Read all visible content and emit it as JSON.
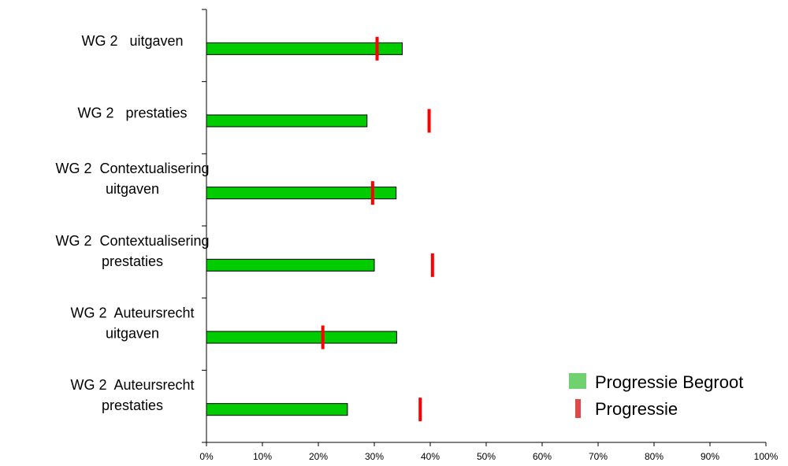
{
  "chart_data": {
    "type": "bar",
    "orientation": "horizontal",
    "categories": [
      [
        "WG 2   uitgaven"
      ],
      [
        "WG 2   prestaties"
      ],
      [
        "WG 2  Contextualisering",
        "uitgaven"
      ],
      [
        "WG 2  Contextualisering",
        "prestaties"
      ],
      [
        "WG 2  Auteursrecht",
        "uitgaven"
      ],
      [
        "WG 2  Auteursrecht",
        "prestaties"
      ]
    ],
    "series": [
      {
        "name": "Progressie Begroot",
        "kind": "bar",
        "color": "#00cc00",
        "values": [
          35,
          28.7,
          33.9,
          30,
          34,
          25.2
        ]
      },
      {
        "name": "Progressie",
        "kind": "marker",
        "color": "#ff0000",
        "values": [
          30.5,
          39.8,
          29.7,
          40.4,
          20.8,
          38.2
        ]
      }
    ],
    "xticks": [
      "0%",
      "10%",
      "20%",
      "30%",
      "40%",
      "50%",
      "60%",
      "70%",
      "80%",
      "90%",
      "100%"
    ],
    "xlim": [
      0,
      100
    ],
    "legend": {
      "position": "bottom-right",
      "items": [
        {
          "label": "Progressie Begroot",
          "color": "#6fd16f"
        },
        {
          "label": "Progressie",
          "color": "#e04848"
        }
      ]
    },
    "grid": false,
    "title": "",
    "xlabel": "",
    "ylabel": ""
  }
}
